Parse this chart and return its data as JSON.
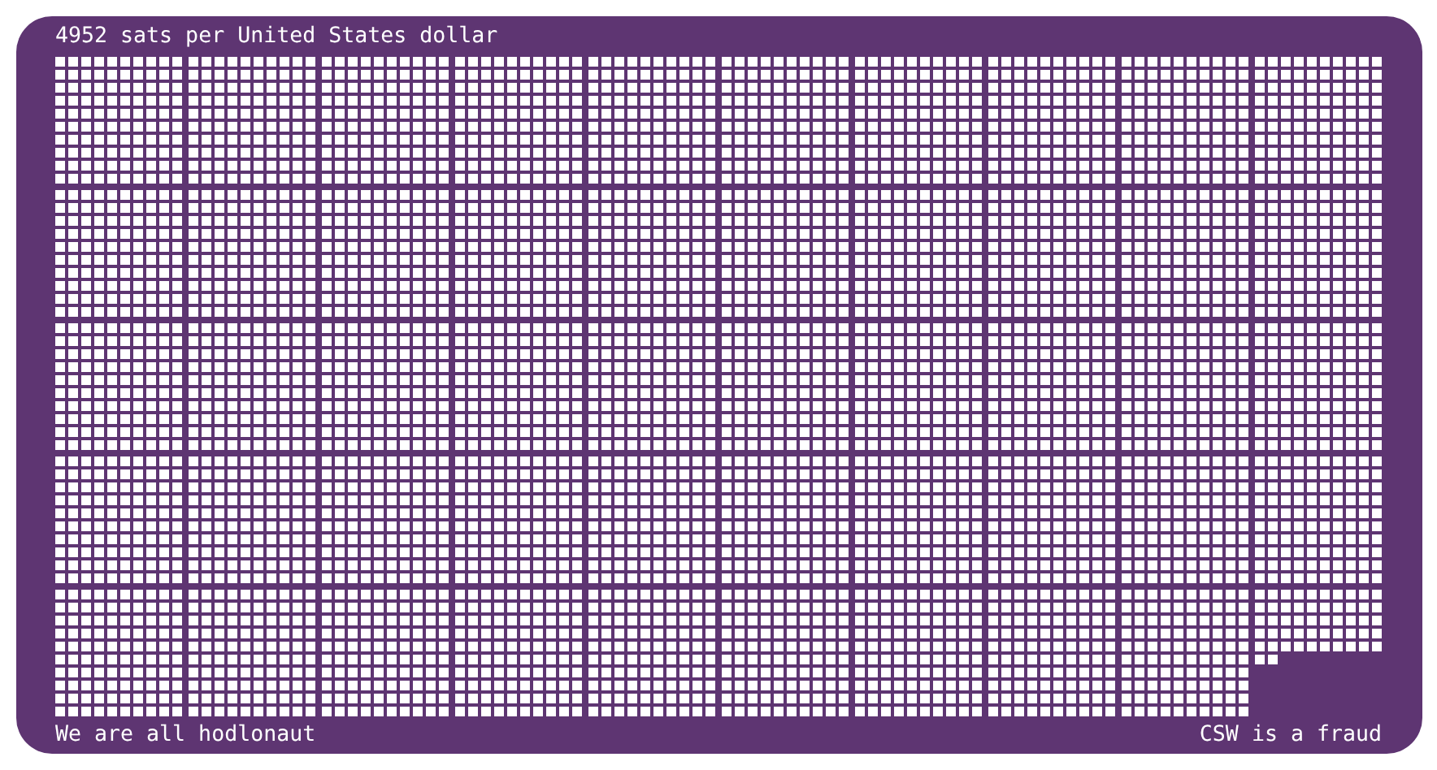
{
  "chart_data": {
    "type": "other",
    "title": "sats per United States dollar",
    "values": [
      4952
    ],
    "data_labels": true,
    "color": "#ffffff",
    "annotations": [
      "We are all hodlonaut",
      "CSW is a fraud"
    ]
  }
}
